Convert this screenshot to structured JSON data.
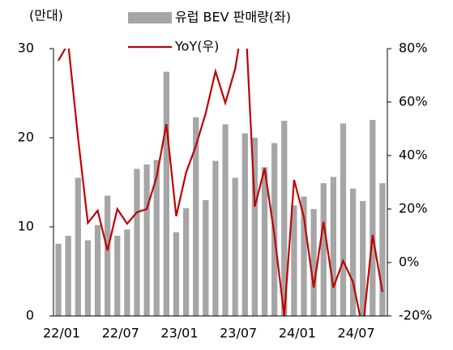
{
  "chart_data": {
    "type": "bar_line",
    "unit_label": "(만대)",
    "categories": [
      "22/01",
      null,
      null,
      null,
      null,
      null,
      "22/07",
      null,
      null,
      null,
      null,
      null,
      "23/01",
      null,
      null,
      null,
      null,
      null,
      "23/07",
      null,
      null,
      null,
      null,
      null,
      "24/01",
      null,
      null,
      null,
      null,
      null,
      "24/07",
      null,
      null,
      null
    ],
    "series": [
      {
        "name": "유럽 BEV 판매량(좌)",
        "color": "#a6a6a6",
        "axis": "y",
        "values": [
          8.1,
          9.0,
          15.5,
          8.5,
          10.2,
          13.5,
          9.0,
          9.7,
          16.5,
          17.0,
          17.5,
          27.4,
          9.4,
          12.1,
          22.3,
          13.0,
          17.4,
          21.5,
          15.5,
          20.5,
          20.0,
          16.7,
          19.4,
          21.9,
          12.4,
          13.4,
          12.0,
          14.9,
          15.6,
          21.6,
          14.3,
          12.9,
          22.0,
          14.9
        ]
      },
      {
        "name": "YoY(우)",
        "color": "#c00000",
        "axis": "y2",
        "values": [
          75.5,
          82,
          46.7,
          14.8,
          19.4,
          4.5,
          20,
          14.5,
          18.8,
          20,
          32,
          51.8,
          17.3,
          33.6,
          43.6,
          55.8,
          71.5,
          59.7,
          72.4,
          95,
          20.9,
          35.2,
          10.3,
          -20,
          30.9,
          17,
          -9.4,
          15.2,
          -9.4,
          0.6,
          -7.3,
          -25,
          10.3,
          -11
        ]
      }
    ],
    "ylim": [
      0,
      30
    ],
    "yticks": [
      0,
      10,
      20,
      30
    ],
    "y2lim": [
      -20,
      80
    ],
    "y2ticks": [
      {
        "value": -20,
        "label": "-20%"
      },
      {
        "value": 0,
        "label": "0%"
      },
      {
        "value": 20,
        "label": "20%"
      },
      {
        "value": 40,
        "label": "40%"
      },
      {
        "value": 60,
        "label": "60%"
      },
      {
        "value": 80,
        "label": "80%"
      }
    ]
  }
}
